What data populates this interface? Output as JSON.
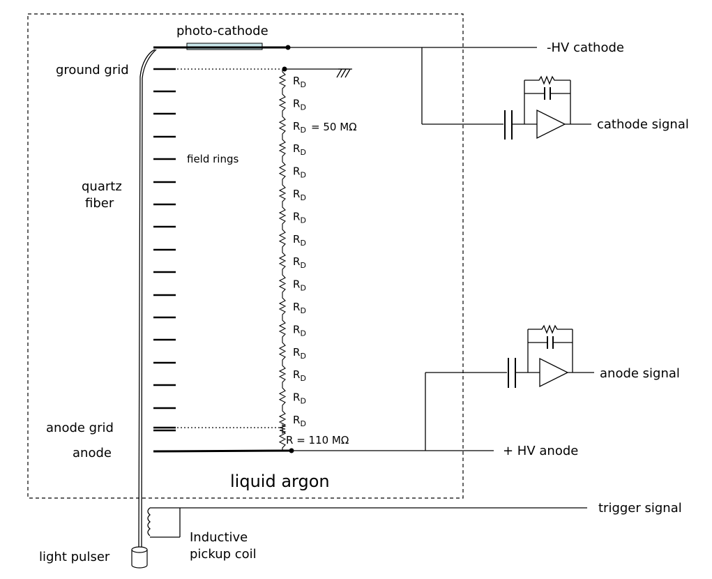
{
  "labels": {
    "photo_cathode": "photo-cathode",
    "hv_cathode": "-HV cathode",
    "ground_grid": "ground grid",
    "cathode_signal": "cathode signal",
    "field_rings": "field rings",
    "quartz": "quartz",
    "fiber": "fiber",
    "rd_value": "= 50 MΩ",
    "r_anode_value": "R = 110 MΩ",
    "anode_signal": "anode signal",
    "anode_grid": "anode grid",
    "anode": "anode",
    "hv_anode": "+ HV  anode",
    "liquid_argon": "liquid argon",
    "trigger_signal": "trigger signal",
    "inductive": "Inductive",
    "pickup_coil": "pickup coil",
    "light_pulser": "light pulser",
    "rd_main": "R",
    "rd_sub": "D"
  },
  "resistor_chain": {
    "rd_label_count": 16
  }
}
